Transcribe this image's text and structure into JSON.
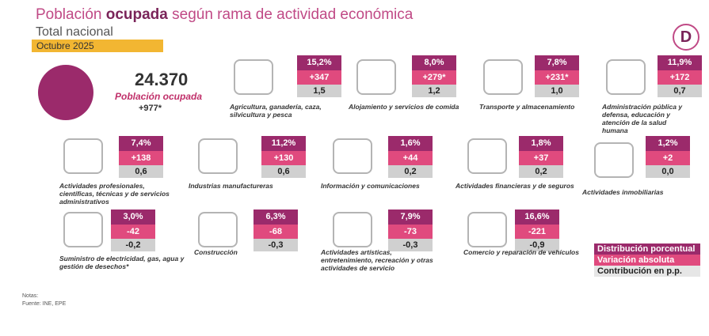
{
  "header": {
    "title_a": "Población",
    "title_b": "ocupada",
    "title_c": "según rama de actividad económica",
    "subtitle": "Total nacional",
    "period": "Octubre 2025",
    "logo": "D"
  },
  "total": {
    "value": "24.370",
    "label": "Población ocupada",
    "change": "+977*"
  },
  "sectors": [
    {
      "name": "Agricultura, ganadería, caza, silvicultura y pesca",
      "share": "15,2%",
      "change": "+347",
      "contribution": "1,5"
    },
    {
      "name": "Alojamiento y servicios de comida",
      "share": "8,0%",
      "change": "+279*",
      "contribution": "1,2"
    },
    {
      "name": "Transporte y almacenamiento",
      "share": "7,8%",
      "change": "+231*",
      "contribution": "1,0"
    },
    {
      "name": "Administración pública y defensa, educación y atención de la salud humana",
      "share": "11,9%",
      "change": "+172",
      "contribution": "0,7"
    },
    {
      "name": "Actividades profesionales, científicas, técnicas y de servicios administrativos",
      "share": "7,4%",
      "change": "+138",
      "contribution": "0,6"
    },
    {
      "name": "Industrias manufactureras",
      "share": "11,2%",
      "change": "+130",
      "contribution": "0,6"
    },
    {
      "name": "Información y comunicaciones",
      "share": "1,6%",
      "change": "+44",
      "contribution": "0,2"
    },
    {
      "name": "Actividades financieras y de seguros",
      "share": "1,8%",
      "change": "+37",
      "contribution": "0,2"
    },
    {
      "name": "Actividades inmobiliarias",
      "share": "1,2%",
      "change": "+2",
      "contribution": "0,0"
    },
    {
      "name": "Suministro de electricidad, gas, agua y gestión de desechos*",
      "share": "3,0%",
      "change": "-42",
      "contribution": "-0,2"
    },
    {
      "name": "Construcción",
      "share": "6,3%",
      "change": "-68",
      "contribution": "-0,3"
    },
    {
      "name": "Actividades artísticas, entretenimiento, recreación y otras actividades de servicio",
      "share": "7,9%",
      "change": "-73",
      "contribution": "-0,3"
    },
    {
      "name": "Comercio y reparación de vehículos",
      "share": "16,6%",
      "change": "-221",
      "contribution": "-0,9"
    }
  ],
  "legend": [
    "Distribución porcentual",
    "Variación absoluta",
    "Contribución en p.p."
  ],
  "notes": [
    "Notas:",
    "Fuente: INE, EPE"
  ]
}
